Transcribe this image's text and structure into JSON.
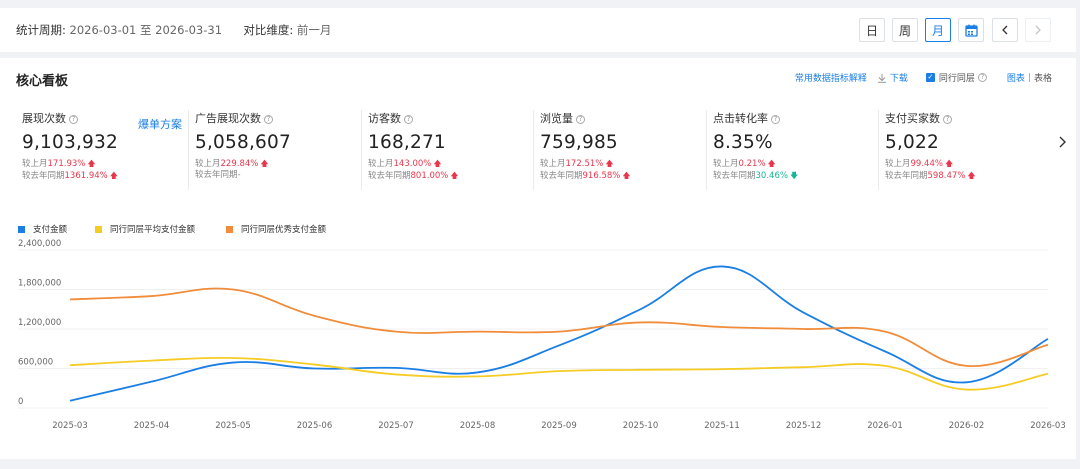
{
  "filter_bar": {
    "period_label": "统计周期:",
    "period_value": "2026-03-01 至 2026-03-31",
    "compare_label": "对比维度:",
    "compare_value": "前一月",
    "buttons": [
      "日",
      "周",
      "月"
    ],
    "active_button": "月",
    "icons": [
      "calendar-icon",
      "chevron-left-icon",
      "chevron-right-icon"
    ]
  },
  "dashboard": {
    "title": "核心看板",
    "common_metrics_link": "常用数据指标解释",
    "download_label": "下载",
    "peer_layer_label": "同行同层",
    "view_chart": "图表",
    "view_divider": "|",
    "view_table": "表格",
    "plan_link": "爆单方案"
  },
  "metrics": [
    {
      "label": "展现次数",
      "value": "9,103,932",
      "cmp1_label": "较上月",
      "cmp1_value": "171.93%",
      "cmp1_dir": "up",
      "cmp2_label": "较去年同期",
      "cmp2_value": "1361.94%",
      "cmp2_dir": "up"
    },
    {
      "label": "广告展现次数",
      "value": "5,058,607",
      "cmp1_label": "较上月",
      "cmp1_value": "229.84%",
      "cmp1_dir": "up",
      "cmp2_label": "较去年同期",
      "cmp2_value": "-",
      "cmp2_dir": "none"
    },
    {
      "label": "访客数",
      "value": "168,271",
      "cmp1_label": "较上月",
      "cmp1_value": "143.00%",
      "cmp1_dir": "up",
      "cmp2_label": "较去年同期",
      "cmp2_value": "801.00%",
      "cmp2_dir": "up"
    },
    {
      "label": "浏览量",
      "value": "759,985",
      "cmp1_label": "较上月",
      "cmp1_value": "172.51%",
      "cmp1_dir": "up",
      "cmp2_label": "较去年同期",
      "cmp2_value": "916.58%",
      "cmp2_dir": "up"
    },
    {
      "label": "点击转化率",
      "value": "8.35%",
      "cmp1_label": "较上月",
      "cmp1_value": "0.21%",
      "cmp1_dir": "up",
      "cmp2_label": "较去年同期",
      "cmp2_value": "30.46%",
      "cmp2_dir": "down"
    },
    {
      "label": "支付买家数",
      "value": "5,022",
      "cmp1_label": "较上月",
      "cmp1_value": "99.44%",
      "cmp1_dir": "up",
      "cmp2_label": "较去年同期",
      "cmp2_value": "598.47%",
      "cmp2_dir": "up"
    }
  ],
  "chart_data": {
    "type": "line",
    "x": [
      "2025-03",
      "2025-04",
      "2025-05",
      "2025-06",
      "2025-07",
      "2025-08",
      "2025-09",
      "2025-10",
      "2025-11",
      "2025-12",
      "2026-01",
      "2026-02",
      "2026-03"
    ],
    "ylim": [
      0,
      2400000
    ],
    "yticks": [
      0,
      600000,
      1200000,
      1800000,
      2400000
    ],
    "ytick_labels": [
      "0",
      "600,000",
      "1,200,000",
      "1,800,000",
      "2,400,000"
    ],
    "grid": true,
    "legend_position": "top-left",
    "series": [
      {
        "name": "支付金额",
        "color": "#1a7ee5",
        "values": [
          110000,
          400000,
          690000,
          600000,
          610000,
          540000,
          950000,
          1500000,
          2150000,
          1450000,
          860000,
          390000,
          1050000
        ]
      },
      {
        "name": "同行同层平均支付金额",
        "color": "#f5cc25",
        "values": [
          650000,
          720000,
          760000,
          660000,
          510000,
          480000,
          560000,
          580000,
          590000,
          620000,
          640000,
          280000,
          520000
        ]
      },
      {
        "name": "同行同层优秀支付金额",
        "color": "#f08c3a",
        "values": [
          1650000,
          1700000,
          1800000,
          1400000,
          1160000,
          1160000,
          1160000,
          1300000,
          1230000,
          1200000,
          1160000,
          640000,
          960000
        ]
      }
    ]
  }
}
